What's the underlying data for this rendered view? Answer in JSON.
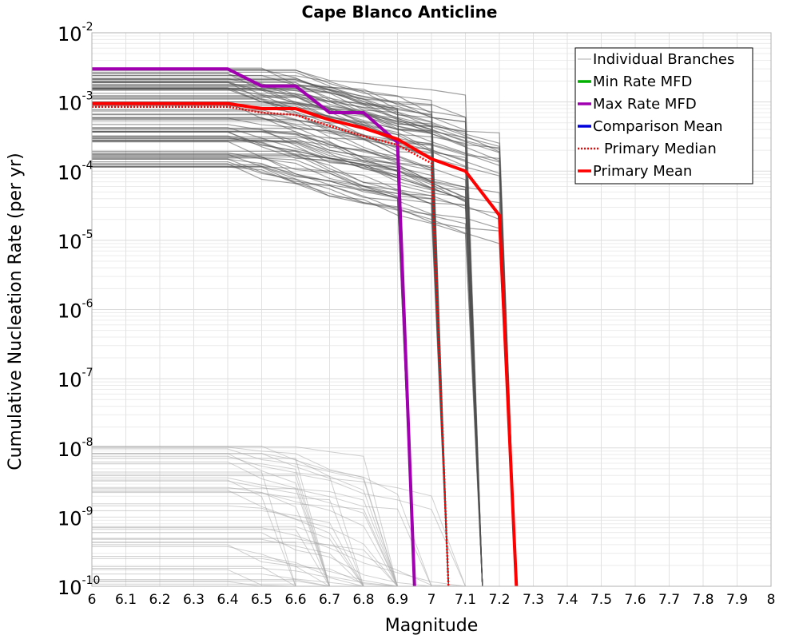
{
  "chart_data": {
    "type": "line",
    "title": "Cape Blanco Anticline",
    "xlabel": "Magnitude",
    "ylabel": "Cumulative Nucleation Rate (per yr)",
    "xlim": [
      6.0,
      8.0
    ],
    "ylim": [
      1e-10,
      0.01
    ],
    "yscale": "log",
    "grid": true,
    "legend_position": "top-right",
    "x_ticks": [
      "6",
      "6.1",
      "6.2",
      "6.3",
      "6.4",
      "6.5",
      "6.6",
      "6.7",
      "6.8",
      "6.9",
      "7",
      "7.1",
      "7.2",
      "7.3",
      "7.4",
      "7.5",
      "7.6",
      "7.7",
      "7.8",
      "7.9",
      "8"
    ],
    "y_ticks": [
      {
        "base": "10",
        "exp": "-2"
      },
      {
        "base": "10",
        "exp": "-3"
      },
      {
        "base": "10",
        "exp": "-4"
      },
      {
        "base": "10",
        "exp": "-5"
      },
      {
        "base": "10",
        "exp": "-6"
      },
      {
        "base": "10",
        "exp": "-7"
      },
      {
        "base": "10",
        "exp": "-8"
      },
      {
        "base": "10",
        "exp": "-9"
      },
      {
        "base": "10",
        "exp": "-10"
      }
    ],
    "legend": [
      {
        "label": "Individual Branches",
        "color": "#c8c8c8",
        "style": "solid"
      },
      {
        "label": "Min Rate MFD",
        "color": "#00b000",
        "style": "solid"
      },
      {
        "label": "Max Rate MFD",
        "color": "#a000b0",
        "style": "solid"
      },
      {
        "label": "Comparison Mean",
        "color": "#0000dd",
        "style": "solid"
      },
      {
        "label": "Primary Median",
        "color": "#ff0000",
        "style": "dotted"
      },
      {
        "label": "Primary Mean",
        "color": "#ff0000",
        "style": "solid"
      }
    ],
    "series": [
      {
        "name": "Max Rate MFD",
        "color": "#a000b0",
        "x": [
          6.0,
          6.4,
          6.5,
          6.6,
          6.7,
          6.8,
          6.9,
          6.95
        ],
        "y": [
          0.003,
          0.003,
          0.0017,
          0.0017,
          0.0007,
          0.0007,
          0.00026,
          1e-10
        ]
      },
      {
        "name": "Primary Median",
        "color": "#ff0000",
        "x": [
          6.0,
          6.4,
          6.5,
          6.6,
          6.7,
          6.8,
          6.9,
          7.0,
          7.05
        ],
        "y": [
          0.00085,
          0.00085,
          0.0007,
          0.00065,
          0.00045,
          0.00032,
          0.00024,
          0.00013,
          1e-10
        ]
      },
      {
        "name": "Primary Mean",
        "color": "#ff0000",
        "x": [
          6.0,
          6.4,
          6.5,
          6.6,
          6.7,
          6.8,
          6.9,
          7.0,
          7.1,
          7.2,
          7.25
        ],
        "y": [
          0.00095,
          0.00095,
          0.0008,
          0.0008,
          0.00055,
          0.00042,
          0.00029,
          0.00015,
          0.0001,
          2.3e-05,
          1e-10
        ]
      }
    ]
  }
}
